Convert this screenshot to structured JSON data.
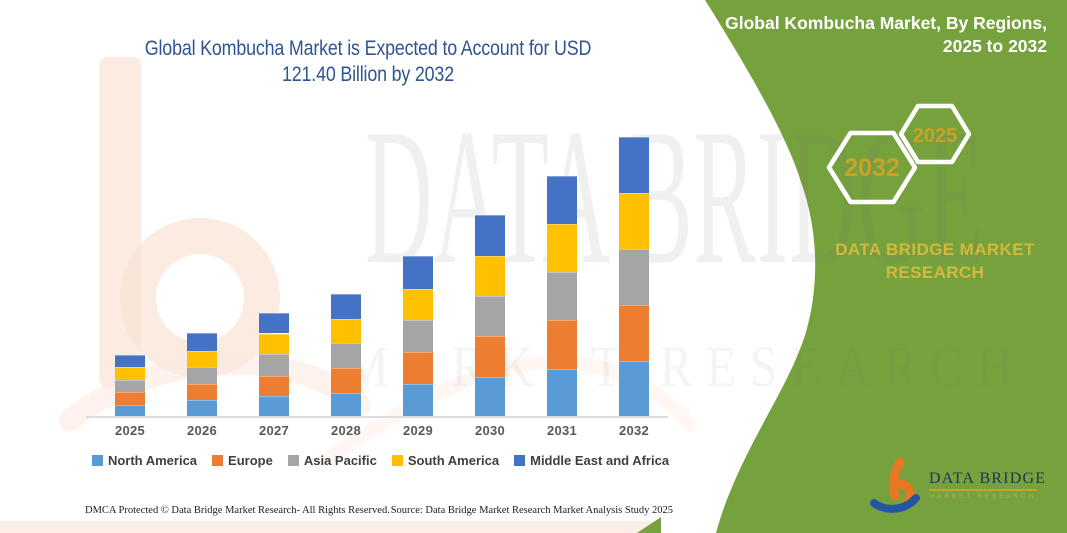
{
  "chart": {
    "title_line1": "Global Kombucha Market is Expected to Account for USD",
    "title_line2": "121.40 Billion by 2032"
  },
  "panel": {
    "title_line1": "Global Kombucha Market, By Regions,",
    "title_line2": "2025 to 2032",
    "hexagons": [
      {
        "year": "2032"
      },
      {
        "year": "2025"
      }
    ],
    "brand_line1": "DATA BRIDGE MARKET",
    "brand_line2": "RESEARCH",
    "background_color": "#76A23E",
    "gold_color": "#D4B83E"
  },
  "logo": {
    "name": "DATA BRIDGE",
    "subtitle": "MARKET RESEARCH"
  },
  "watermark": {
    "line1": "DATA BRIDGE",
    "line2": "MARKET RESEARCH"
  },
  "footer": {
    "left": "DMCA Protected © Data Bridge Market Research-  All Rights Reserved.",
    "right": "Source: Data Bridge Market Research  Market Analysis Study 2025"
  },
  "chart_data": {
    "type": "bar",
    "stacked": true,
    "title": "Global Kombucha Market is Expected to Account for USD 121.40 Billion by 2032",
    "unit": "USD Billion",
    "categories": [
      "2025",
      "2026",
      "2027",
      "2028",
      "2029",
      "2030",
      "2031",
      "2032"
    ],
    "series": [
      {
        "name": "North America",
        "color": "#5B9BD5",
        "values": [
          5.4,
          7.3,
          9.0,
          10.5,
          14.2,
          17.5,
          20.9,
          24.2
        ]
      },
      {
        "name": "Europe",
        "color": "#ED7D31",
        "values": [
          5.4,
          7.2,
          8.9,
          10.8,
          13.9,
          17.5,
          21.1,
          24.4
        ]
      },
      {
        "name": "Asia Pacific",
        "color": "#A5A5A5",
        "values": [
          5.3,
          7.0,
          9.2,
          10.7,
          13.8,
          17.5,
          20.8,
          24.2
        ]
      },
      {
        "name": "South America",
        "color": "#FFC000",
        "values": [
          5.5,
          7.2,
          9.1,
          10.6,
          13.8,
          17.3,
          20.8,
          24.5
        ]
      },
      {
        "name": "Middle East and Africa",
        "color": "#4472C4",
        "values": [
          5.4,
          7.6,
          8.8,
          10.7,
          14.1,
          17.8,
          21.0,
          24.1
        ]
      }
    ],
    "totals": [
      27.0,
      36.3,
      45.0,
      53.3,
      69.8,
      87.6,
      104.6,
      121.4
    ],
    "final_total_2032": 121.4,
    "value_axis_visible": false,
    "grid": false,
    "legend_position": "bottom"
  }
}
